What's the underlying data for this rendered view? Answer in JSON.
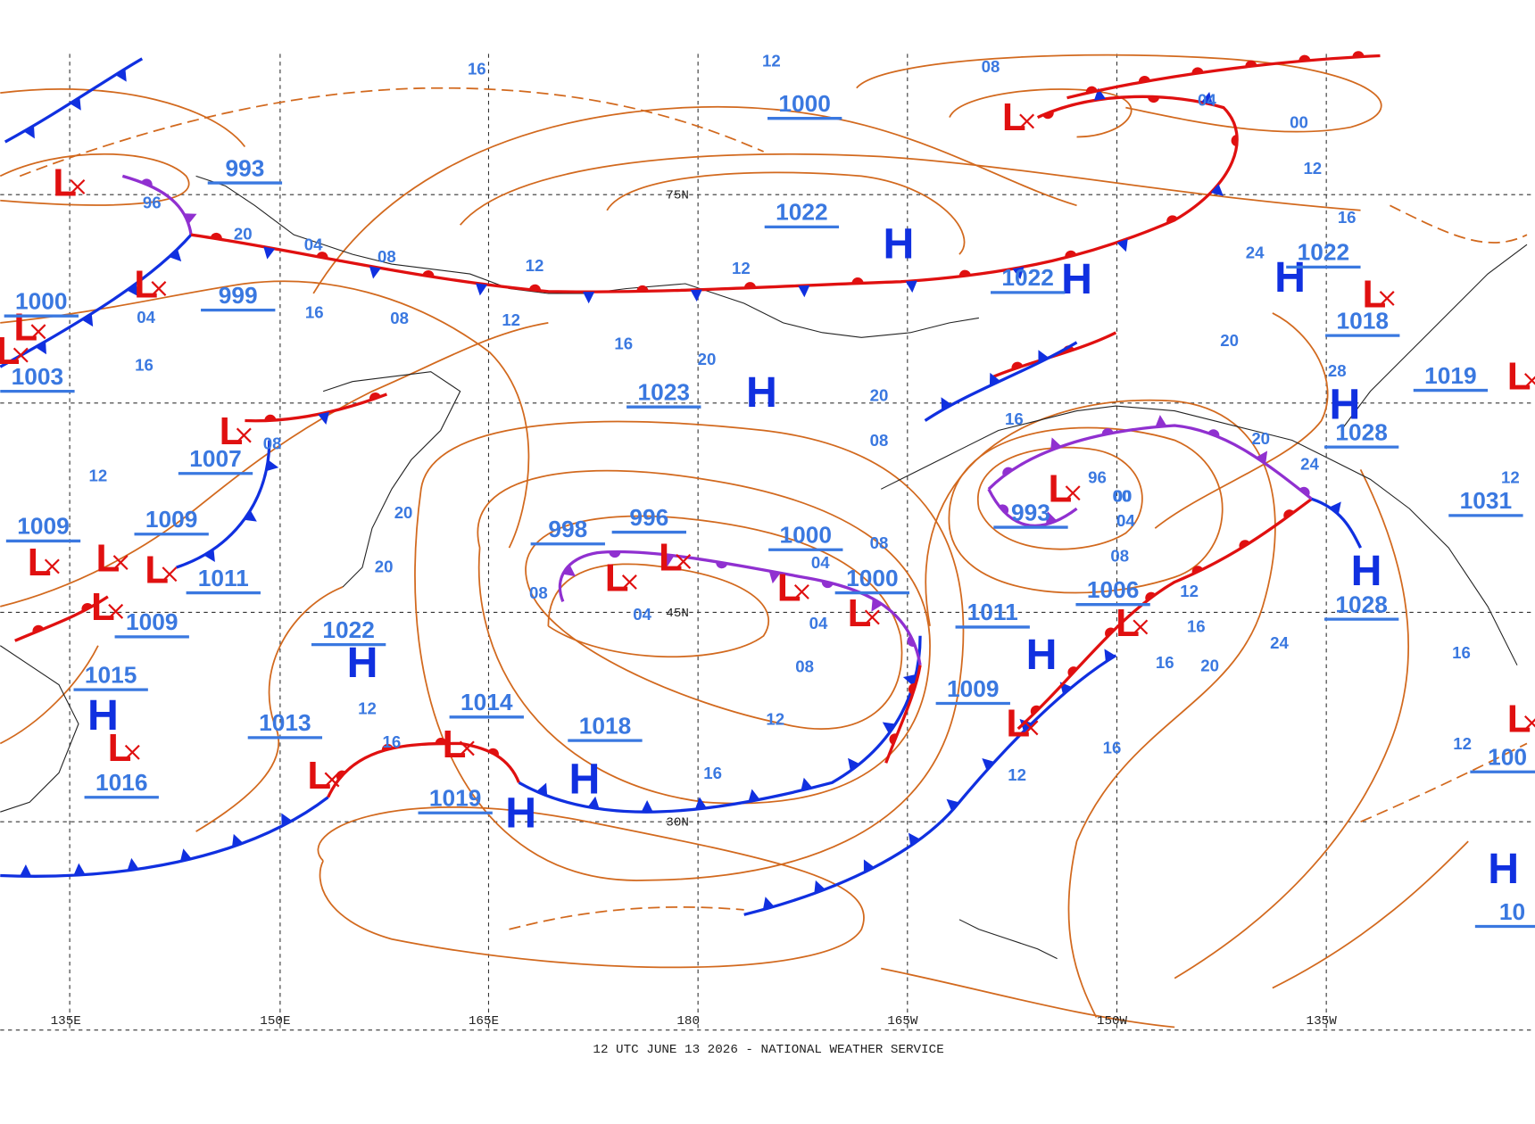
{
  "footer": "12 UTC JUNE 13 2026 - NATIONAL WEATHER SERVICE",
  "longitude_labels": [
    "135E",
    "150E",
    "165E",
    "180",
    "165W",
    "150W",
    "135W"
  ],
  "latitude_labels": [
    "75N",
    "45N",
    "30N"
  ],
  "high_label": "H",
  "low_label": "L",
  "pressure_values": [
    "993",
    "1000",
    "999",
    "1003",
    "1007",
    "1009",
    "1009",
    "1011",
    "1009",
    "1015",
    "1016",
    "1022",
    "1013",
    "1014",
    "1019",
    "1018",
    "998",
    "996",
    "1000",
    "1022",
    "1023",
    "1000",
    "1000",
    "1011",
    "1009",
    "993",
    "1006",
    "1022",
    "1022",
    "1018",
    "1019",
    "1028",
    "1031",
    "1028",
    "100",
    "10"
  ],
  "isobar_labels": [
    "16",
    "12",
    "08",
    "04",
    "00",
    "96",
    "04",
    "08",
    "12",
    "08",
    "04",
    "12",
    "16",
    "20",
    "12",
    "16",
    "20",
    "16",
    "20",
    "08",
    "00",
    "04",
    "04",
    "08",
    "12",
    "16",
    "08",
    "04",
    "12",
    "16",
    "20",
    "16",
    "12",
    "20",
    "16",
    "00",
    "96",
    "04",
    "08",
    "12",
    "16",
    "20",
    "24",
    "16",
    "20",
    "24",
    "28",
    "12",
    "16",
    "16",
    "12",
    "08",
    "04",
    "00",
    "08",
    "12",
    "20",
    "24",
    "12"
  ]
}
